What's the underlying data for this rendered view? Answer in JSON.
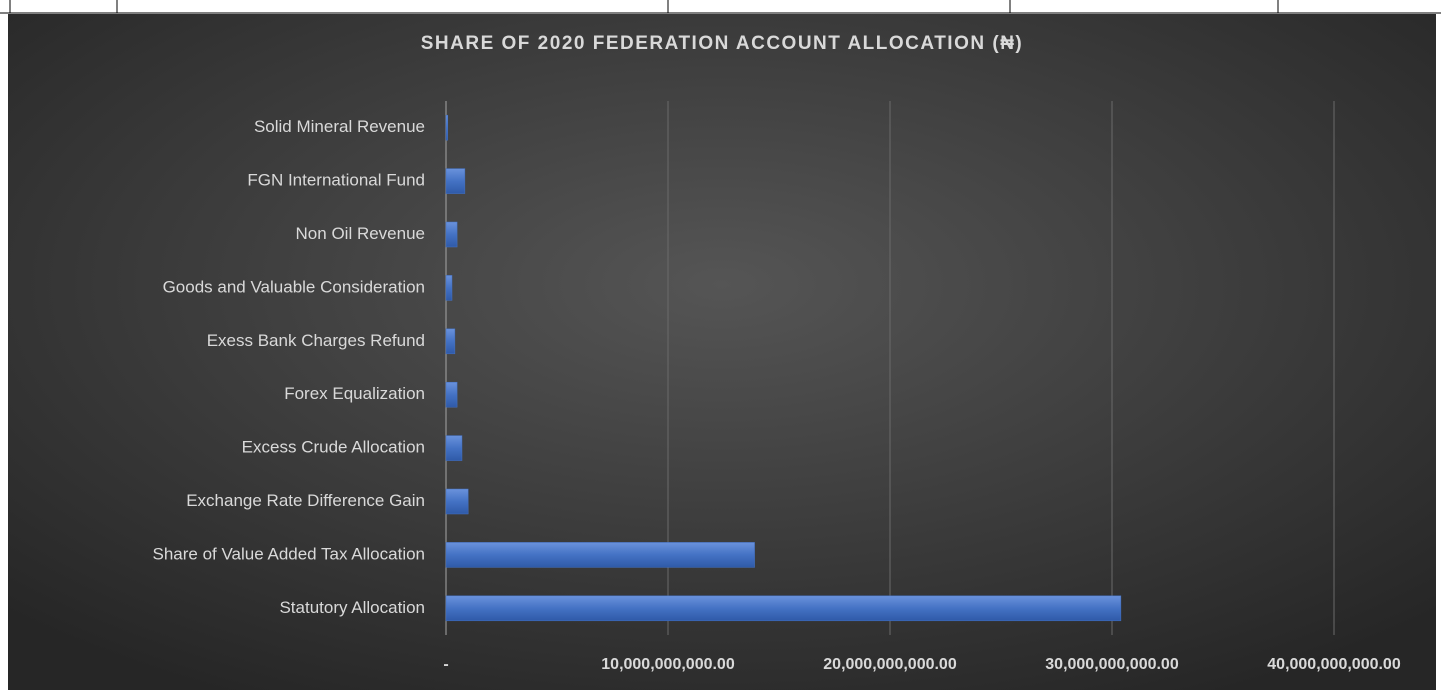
{
  "chart_data": {
    "type": "barh",
    "title": "SHARE OF 2020 FEDERATION ACCOUNT ALLOCATION (₦)",
    "categories": [
      "Solid Mineral Revenue",
      "FGN International Fund",
      "Non Oil Revenue",
      "Goods and Valuable Consideration",
      "Exess Bank Charges Refund",
      "Forex Equalization",
      "Excess Crude Allocation",
      "Exchange Rate Difference Gain",
      "Share of Value Added Tax Allocation",
      "Statutory Allocation"
    ],
    "values": [
      80000000,
      850000000,
      500000000,
      270000000,
      400000000,
      500000000,
      720000000,
      1000000000,
      13900000000,
      30400000000
    ],
    "color": "#4472c4",
    "xlim": [
      0,
      40000000000
    ],
    "xticks": [
      {
        "value": 0,
        "label": "-"
      },
      {
        "value": 10000000000,
        "label": "10,000,000,000.00"
      },
      {
        "value": 20000000000,
        "label": "20,000,000,000.00"
      },
      {
        "value": 30000000000,
        "label": "30,000,000,000.00"
      },
      {
        "value": 40000000000,
        "label": "40,000,000,000.00"
      }
    ],
    "grid": true
  }
}
